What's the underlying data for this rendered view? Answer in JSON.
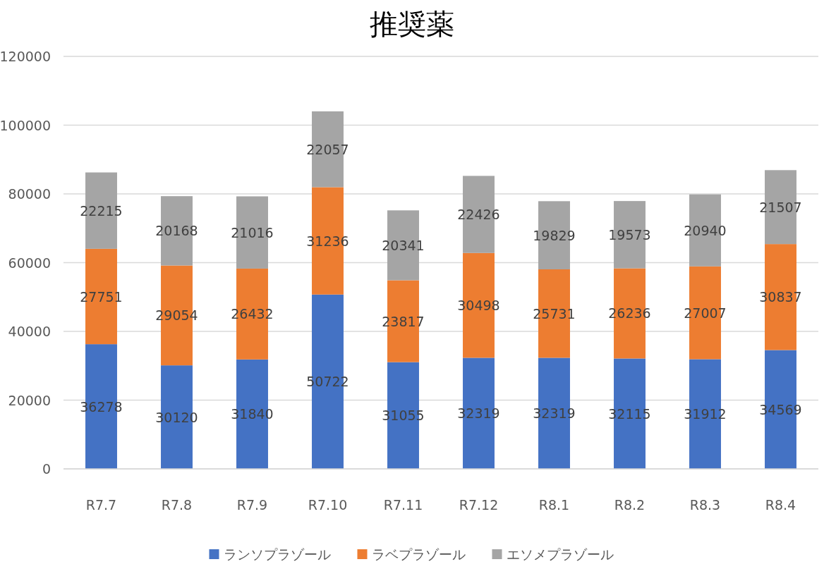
{
  "chart_data": {
    "type": "bar",
    "title": "推奨薬",
    "categories": [
      "R7.7",
      "R7.8",
      "R7.9",
      "R7.10",
      "R7.11",
      "R7.12",
      "R8.1",
      "R8.2",
      "R8.3",
      "R8.4"
    ],
    "series": [
      {
        "name": "ランソプラゾール",
        "color": "#4472c4",
        "values": [
          36278,
          30120,
          31840,
          50722,
          31055,
          32319,
          32319,
          32115,
          31912,
          34569
        ]
      },
      {
        "name": "ラベプラゾール",
        "color": "#ed7d31",
        "values": [
          27751,
          29054,
          26432,
          31236,
          23817,
          30498,
          25731,
          26236,
          27007,
          30837
        ]
      },
      {
        "name": "エソメプラゾール",
        "color": "#a5a5a5",
        "values": [
          22215,
          20168,
          21016,
          22057,
          20341,
          22426,
          19829,
          19573,
          20940,
          21507
        ]
      }
    ],
    "stacked": true,
    "ylim": [
      0,
      120000
    ],
    "yticks": [
      0,
      20000,
      40000,
      60000,
      80000,
      100000,
      120000
    ],
    "grid": "y",
    "legend": "bottom",
    "data_labels": true
  }
}
